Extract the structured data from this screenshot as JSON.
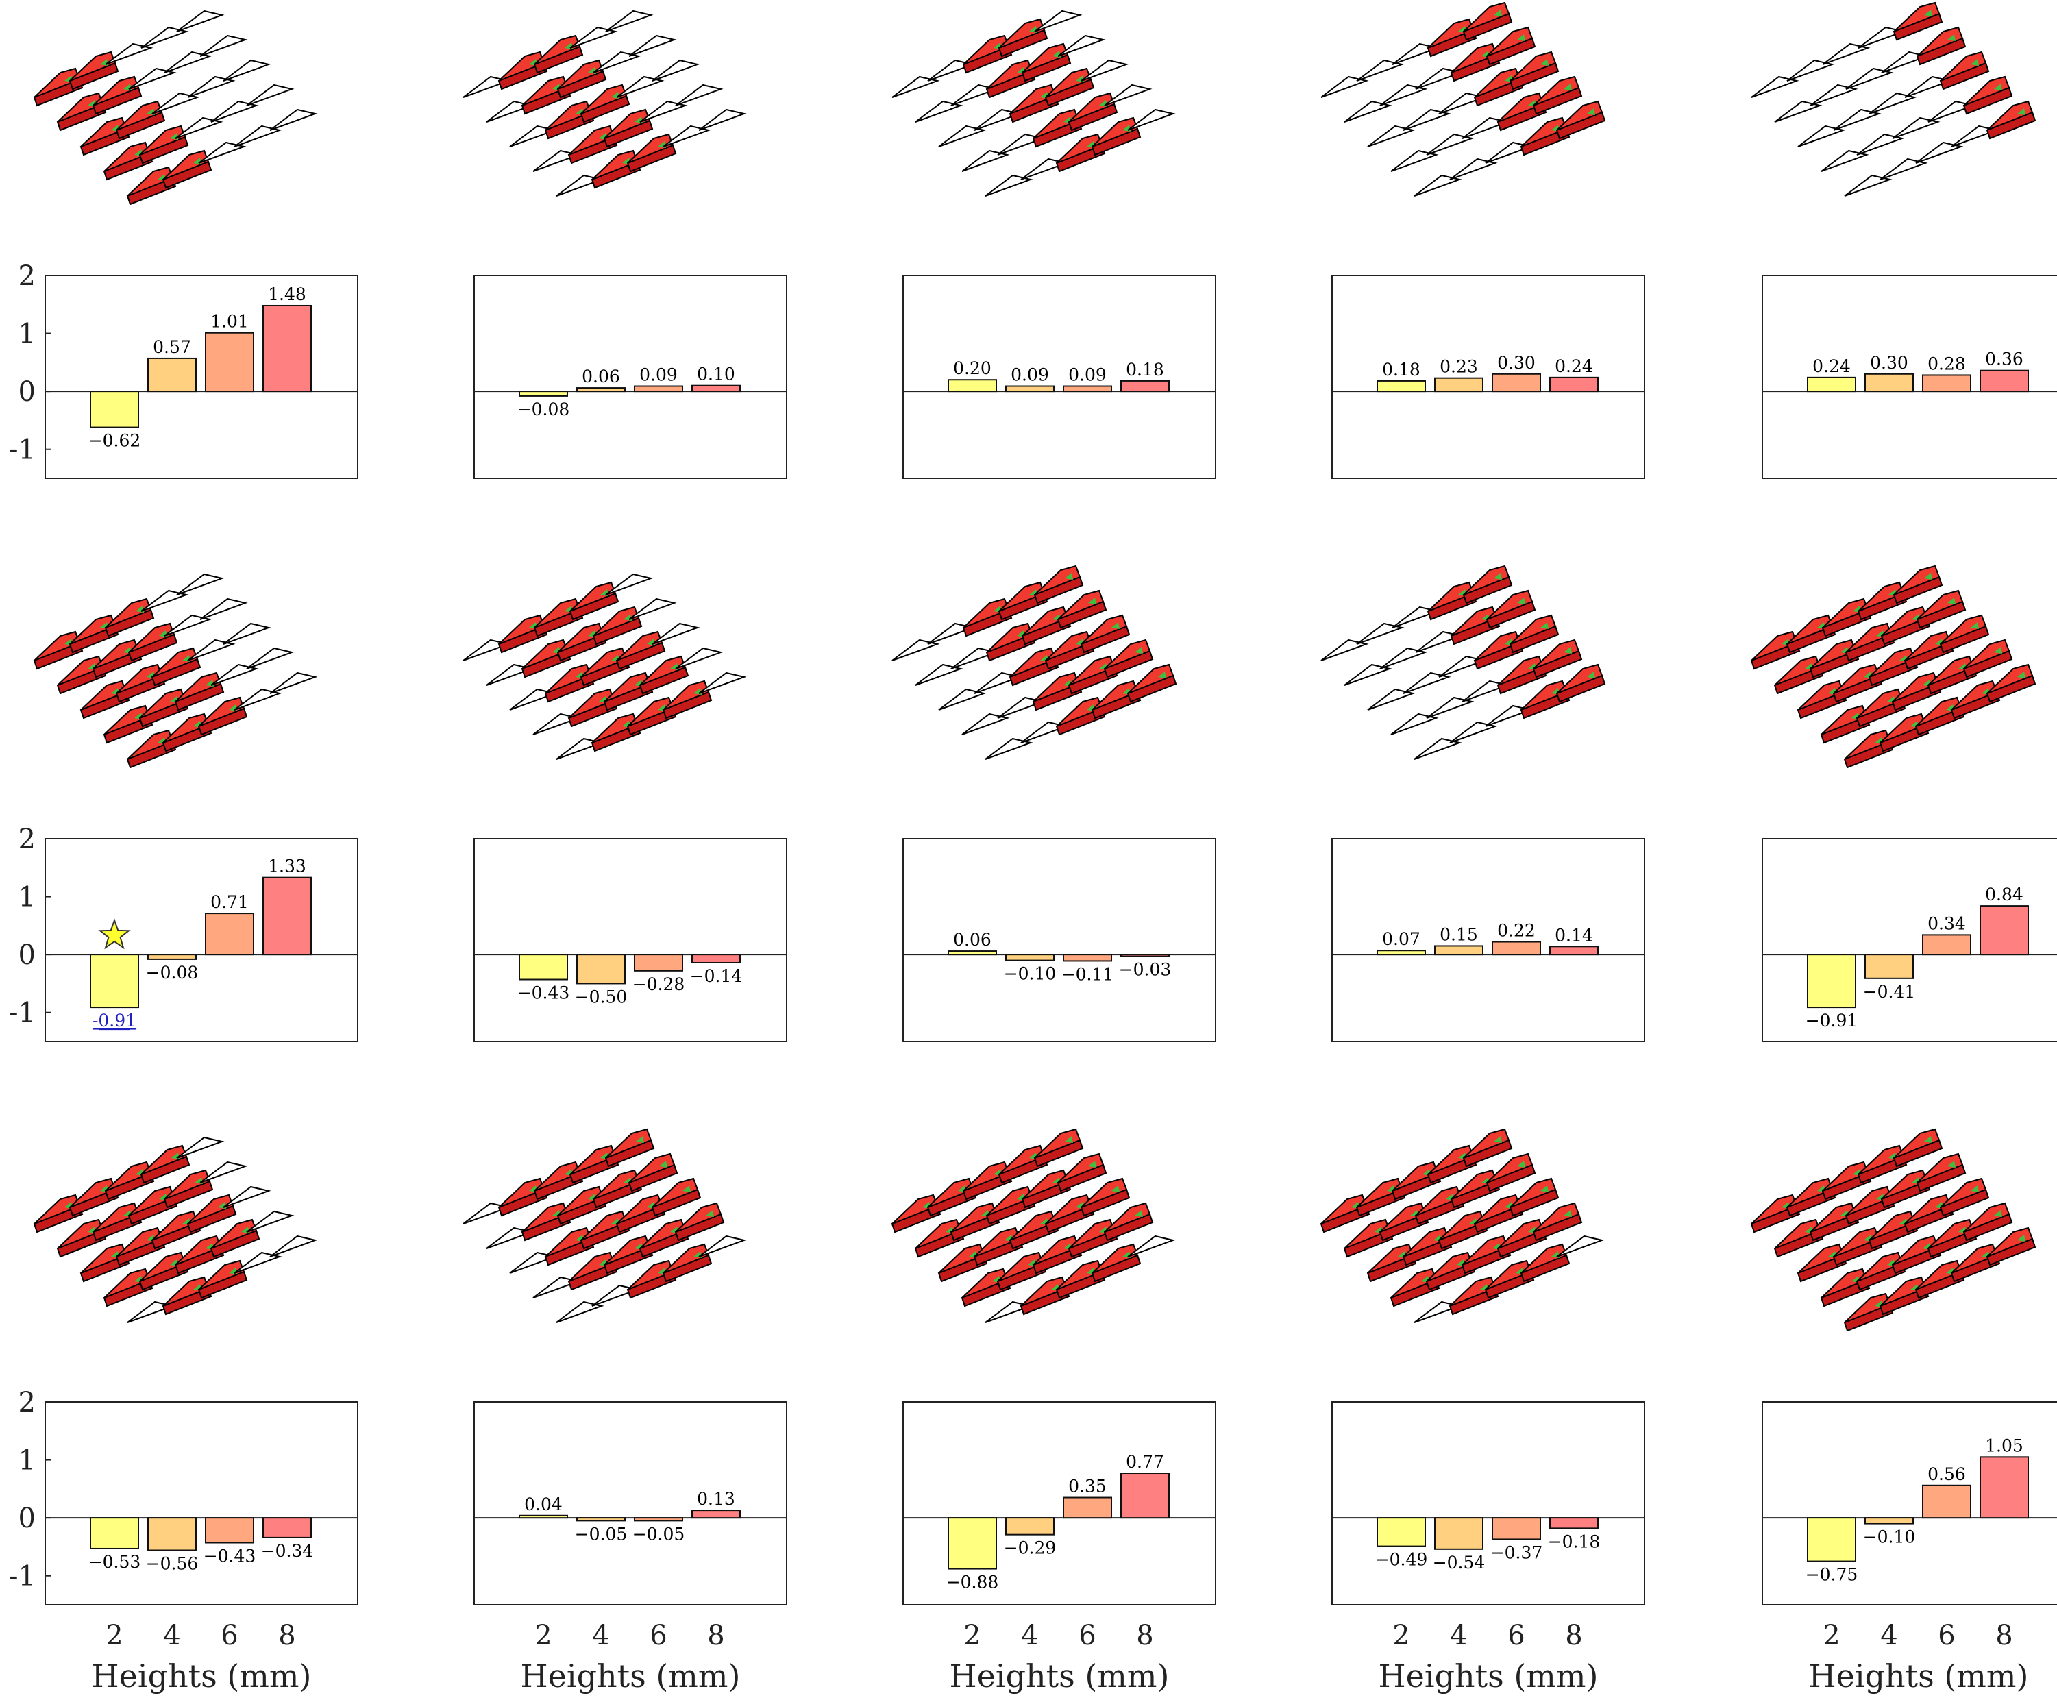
{
  "figure": {
    "xlabel": "Heights (mm)",
    "colors": [
      "#ffff80",
      "#ffd080",
      "#ffa880",
      "#ff8080"
    ],
    "highlight_color": "#2020c0",
    "star_color": "#ffff30"
  },
  "chart_data": [
    {
      "type": "bar",
      "categories": [
        "2",
        "4",
        "6",
        "8"
      ],
      "values": [
        -0.62,
        0.57,
        1.01,
        1.48
      ],
      "labels": [
        "−0.62",
        "0.57",
        "1.01",
        "1.48"
      ],
      "yticks": [
        "2",
        "1",
        "0",
        "-1"
      ],
      "ylim": [
        -1.5,
        2
      ],
      "xlabel": "",
      "pattern": [
        [
          1,
          1,
          0,
          0,
          0
        ],
        [
          1,
          1,
          0,
          0,
          0
        ],
        [
          1,
          1,
          0,
          0,
          0
        ],
        [
          1,
          1,
          0,
          0,
          0
        ],
        [
          1,
          1,
          0,
          0,
          0
        ]
      ],
      "highlight": null
    },
    {
      "type": "bar",
      "categories": [
        "2",
        "4",
        "6",
        "8"
      ],
      "values": [
        -0.08,
        0.06,
        0.09,
        0.1
      ],
      "labels": [
        "−0.08",
        "0.06",
        "0.09",
        "0.10"
      ],
      "yticks": [],
      "ylim": [
        -1.5,
        2
      ],
      "xlabel": "",
      "pattern": [
        [
          0,
          1,
          1,
          0,
          0
        ],
        [
          0,
          1,
          1,
          0,
          0
        ],
        [
          0,
          1,
          1,
          0,
          0
        ],
        [
          0,
          1,
          1,
          0,
          0
        ],
        [
          0,
          1,
          1,
          0,
          0
        ]
      ],
      "highlight": null
    },
    {
      "type": "bar",
      "categories": [
        "2",
        "4",
        "6",
        "8"
      ],
      "values": [
        0.2,
        0.09,
        0.09,
        0.18
      ],
      "labels": [
        "0.20",
        "0.09",
        "0.09",
        "0.18"
      ],
      "yticks": [],
      "ylim": [
        -1.5,
        2
      ],
      "xlabel": "",
      "pattern": [
        [
          0,
          0,
          1,
          1,
          0
        ],
        [
          0,
          0,
          1,
          1,
          0
        ],
        [
          0,
          0,
          1,
          1,
          0
        ],
        [
          0,
          0,
          1,
          1,
          0
        ],
        [
          0,
          0,
          1,
          1,
          0
        ]
      ],
      "highlight": null
    },
    {
      "type": "bar",
      "categories": [
        "2",
        "4",
        "6",
        "8"
      ],
      "values": [
        0.18,
        0.23,
        0.3,
        0.24
      ],
      "labels": [
        "0.18",
        "0.23",
        "0.30",
        "0.24"
      ],
      "yticks": [],
      "ylim": [
        -1.5,
        2
      ],
      "xlabel": "",
      "pattern": [
        [
          0,
          0,
          0,
          1,
          1
        ],
        [
          0,
          0,
          0,
          1,
          1
        ],
        [
          0,
          0,
          0,
          1,
          1
        ],
        [
          0,
          0,
          0,
          1,
          1
        ],
        [
          0,
          0,
          0,
          1,
          1
        ]
      ],
      "highlight": null
    },
    {
      "type": "bar",
      "categories": [
        "2",
        "4",
        "6",
        "8"
      ],
      "values": [
        0.24,
        0.3,
        0.28,
        0.36
      ],
      "labels": [
        "0.24",
        "0.30",
        "0.28",
        "0.36"
      ],
      "yticks": [],
      "ylim": [
        -1.5,
        2
      ],
      "xlabel": "",
      "pattern": [
        [
          0,
          0,
          0,
          0,
          1
        ],
        [
          0,
          0,
          0,
          0,
          1
        ],
        [
          0,
          0,
          0,
          0,
          1
        ],
        [
          0,
          0,
          0,
          0,
          1
        ],
        [
          0,
          0,
          0,
          0,
          1
        ]
      ],
      "highlight": null
    },
    {
      "type": "bar",
      "categories": [
        "2",
        "4",
        "6",
        "8"
      ],
      "values": [
        -0.91,
        -0.08,
        0.71,
        1.33
      ],
      "labels": [
        "-0.91",
        "−0.08",
        "0.71",
        "1.33"
      ],
      "yticks": [
        "2",
        "1",
        "0",
        "-1"
      ],
      "ylim": [
        -1.5,
        2
      ],
      "xlabel": "",
      "pattern": [
        [
          1,
          1,
          1,
          0,
          0
        ],
        [
          1,
          1,
          1,
          0,
          0
        ],
        [
          1,
          1,
          1,
          0,
          0
        ],
        [
          1,
          1,
          1,
          0,
          0
        ],
        [
          1,
          1,
          1,
          0,
          0
        ]
      ],
      "highlight": 0
    },
    {
      "type": "bar",
      "categories": [
        "2",
        "4",
        "6",
        "8"
      ],
      "values": [
        -0.43,
        -0.5,
        -0.28,
        -0.14
      ],
      "labels": [
        "−0.43",
        "−0.50",
        "−0.28",
        "−0.14"
      ],
      "yticks": [],
      "ylim": [
        -1.5,
        2
      ],
      "xlabel": "",
      "pattern": [
        [
          0,
          1,
          1,
          1,
          0
        ],
        [
          0,
          1,
          1,
          1,
          0
        ],
        [
          0,
          1,
          1,
          1,
          0
        ],
        [
          0,
          1,
          1,
          1,
          0
        ],
        [
          0,
          1,
          1,
          1,
          0
        ]
      ],
      "highlight": null
    },
    {
      "type": "bar",
      "categories": [
        "2",
        "4",
        "6",
        "8"
      ],
      "values": [
        0.06,
        -0.1,
        -0.11,
        -0.03
      ],
      "labels": [
        "0.06",
        "−0.10",
        "−0.11",
        "−0.03"
      ],
      "yticks": [],
      "ylim": [
        -1.5,
        2
      ],
      "xlabel": "",
      "pattern": [
        [
          0,
          0,
          1,
          1,
          1
        ],
        [
          0,
          0,
          1,
          1,
          1
        ],
        [
          0,
          0,
          1,
          1,
          1
        ],
        [
          0,
          0,
          1,
          1,
          1
        ],
        [
          0,
          0,
          1,
          1,
          1
        ]
      ],
      "highlight": null
    },
    {
      "type": "bar",
      "categories": [
        "2",
        "4",
        "6",
        "8"
      ],
      "values": [
        0.07,
        0.15,
        0.22,
        0.14
      ],
      "labels": [
        "0.07",
        "0.15",
        "0.22",
        "0.14"
      ],
      "yticks": [],
      "ylim": [
        -1.5,
        2
      ],
      "xlabel": "",
      "pattern": [
        [
          0,
          0,
          0,
          1,
          1
        ],
        [
          0,
          0,
          0,
          1,
          1
        ],
        [
          0,
          0,
          0,
          1,
          1
        ],
        [
          0,
          0,
          0,
          1,
          1
        ],
        [
          0,
          0,
          0,
          1,
          1
        ]
      ],
      "highlight": null
    },
    {
      "type": "bar",
      "categories": [
        "2",
        "4",
        "6",
        "8"
      ],
      "values": [
        -0.91,
        -0.41,
        0.34,
        0.84
      ],
      "labels": [
        "−0.91",
        "−0.41",
        "0.34",
        "0.84"
      ],
      "yticks": [],
      "ylim": [
        -1.5,
        2
      ],
      "xlabel": "",
      "pattern": [
        [
          1,
          1,
          1,
          1,
          1
        ],
        [
          1,
          1,
          1,
          1,
          1
        ],
        [
          1,
          1,
          1,
          1,
          1
        ],
        [
          1,
          1,
          1,
          1,
          1
        ],
        [
          1,
          1,
          1,
          1,
          1
        ]
      ],
      "highlight": null
    },
    {
      "type": "bar",
      "categories": [
        "2",
        "4",
        "6",
        "8"
      ],
      "values": [
        -0.53,
        -0.56,
        -0.43,
        -0.34
      ],
      "labels": [
        "−0.53",
        "−0.56",
        "−0.43",
        "−0.34"
      ],
      "yticks": [
        "2",
        "1",
        "0",
        "-1"
      ],
      "ylim": [
        -1.5,
        2
      ],
      "xlabel": "Heights (mm)",
      "pattern": [
        [
          1,
          1,
          1,
          1,
          0
        ],
        [
          1,
          1,
          1,
          1,
          0
        ],
        [
          1,
          1,
          1,
          1,
          0
        ],
        [
          1,
          1,
          1,
          1,
          0
        ],
        [
          0,
          1,
          1,
          0,
          0
        ]
      ],
      "highlight": null
    },
    {
      "type": "bar",
      "categories": [
        "2",
        "4",
        "6",
        "8"
      ],
      "values": [
        0.04,
        -0.05,
        -0.05,
        0.13
      ],
      "labels": [
        "0.04",
        "−0.05",
        "−0.05",
        "0.13"
      ],
      "yticks": [],
      "ylim": [
        -1.5,
        2
      ],
      "xlabel": "Heights (mm)",
      "pattern": [
        [
          0,
          1,
          1,
          1,
          1
        ],
        [
          0,
          1,
          1,
          1,
          1
        ],
        [
          0,
          1,
          1,
          1,
          1
        ],
        [
          0,
          1,
          1,
          1,
          1
        ],
        [
          0,
          0,
          1,
          1,
          0
        ]
      ],
      "highlight": null
    },
    {
      "type": "bar",
      "categories": [
        "2",
        "4",
        "6",
        "8"
      ],
      "values": [
        -0.88,
        -0.29,
        0.35,
        0.77
      ],
      "labels": [
        "−0.88",
        "−0.29",
        "0.35",
        "0.77"
      ],
      "yticks": [],
      "ylim": [
        -1.5,
        2
      ],
      "xlabel": "Heights (mm)",
      "pattern": [
        [
          1,
          1,
          1,
          1,
          1
        ],
        [
          1,
          1,
          1,
          1,
          1
        ],
        [
          1,
          1,
          1,
          1,
          1
        ],
        [
          1,
          1,
          1,
          1,
          1
        ],
        [
          0,
          1,
          1,
          1,
          0
        ]
      ],
      "highlight": null
    },
    {
      "type": "bar",
      "categories": [
        "2",
        "4",
        "6",
        "8"
      ],
      "values": [
        -0.49,
        -0.54,
        -0.37,
        -0.18
      ],
      "labels": [
        "−0.49",
        "−0.54",
        "−0.37",
        "−0.18"
      ],
      "yticks": [],
      "ylim": [
        -1.5,
        2
      ],
      "xlabel": "Heights (mm)",
      "pattern": [
        [
          1,
          1,
          1,
          1,
          1
        ],
        [
          1,
          1,
          1,
          1,
          1
        ],
        [
          1,
          1,
          1,
          1,
          1
        ],
        [
          1,
          1,
          1,
          1,
          1
        ],
        [
          0,
          1,
          1,
          1,
          0
        ]
      ],
      "highlight": null
    },
    {
      "type": "bar",
      "categories": [
        "2",
        "4",
        "6",
        "8"
      ],
      "values": [
        -0.75,
        -0.1,
        0.56,
        1.05
      ],
      "labels": [
        "−0.75",
        "−0.10",
        "0.56",
        "1.05"
      ],
      "yticks": [],
      "ylim": [
        -1.5,
        2
      ],
      "xlabel": "Heights (mm)",
      "pattern": [
        [
          1,
          1,
          1,
          1,
          1
        ],
        [
          1,
          1,
          1,
          1,
          1
        ],
        [
          1,
          1,
          1,
          1,
          1
        ],
        [
          1,
          1,
          1,
          1,
          1
        ],
        [
          1,
          1,
          1,
          1,
          1
        ]
      ],
      "highlight": null
    }
  ]
}
